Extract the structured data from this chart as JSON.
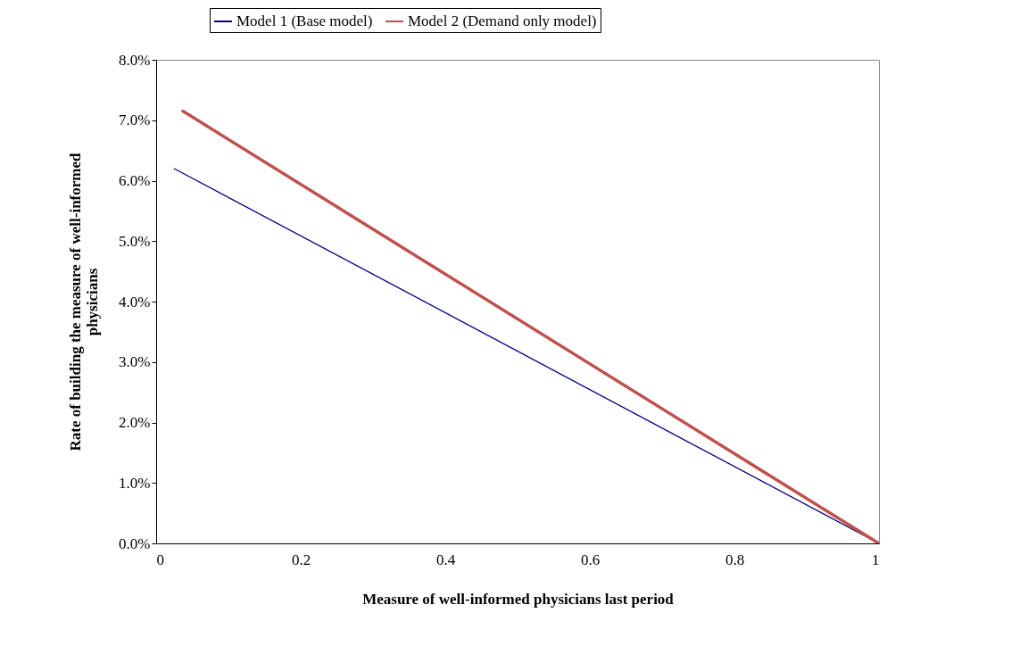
{
  "chart_data": {
    "type": "line",
    "xlabel": "Measure of well-informed physicians last period",
    "ylabel": "Rate of building the measure of well-informed physicians",
    "xlim": [
      0,
      1
    ],
    "xticks": [
      0,
      0.2,
      0.4,
      0.6,
      0.8,
      1
    ],
    "ylim": [
      0,
      8
    ],
    "yticks": [
      {
        "value": 0,
        "label": "0.0%"
      },
      {
        "value": 1,
        "label": "1.0%"
      },
      {
        "value": 2,
        "label": "2.0%"
      },
      {
        "value": 3,
        "label": "3.0%"
      },
      {
        "value": 4,
        "label": "4.0%"
      },
      {
        "value": 5,
        "label": "5.0%"
      },
      {
        "value": 6,
        "label": "6.0%"
      },
      {
        "value": 7,
        "label": "7.0%"
      },
      {
        "value": 8,
        "label": "8.0%"
      }
    ],
    "grid": false,
    "legend": "top",
    "line_style": "solid",
    "marker": "none",
    "series": [
      {
        "name": "Model 1 (Base model)",
        "color": "#000080",
        "x": [
          0.025,
          1
        ],
        "values": [
          6.2,
          0
        ]
      },
      {
        "name": "Model 2 (Demand only model)",
        "color": "#c0504d",
        "x": [
          0.037,
          1
        ],
        "values": [
          7.15,
          0
        ]
      }
    ]
  }
}
